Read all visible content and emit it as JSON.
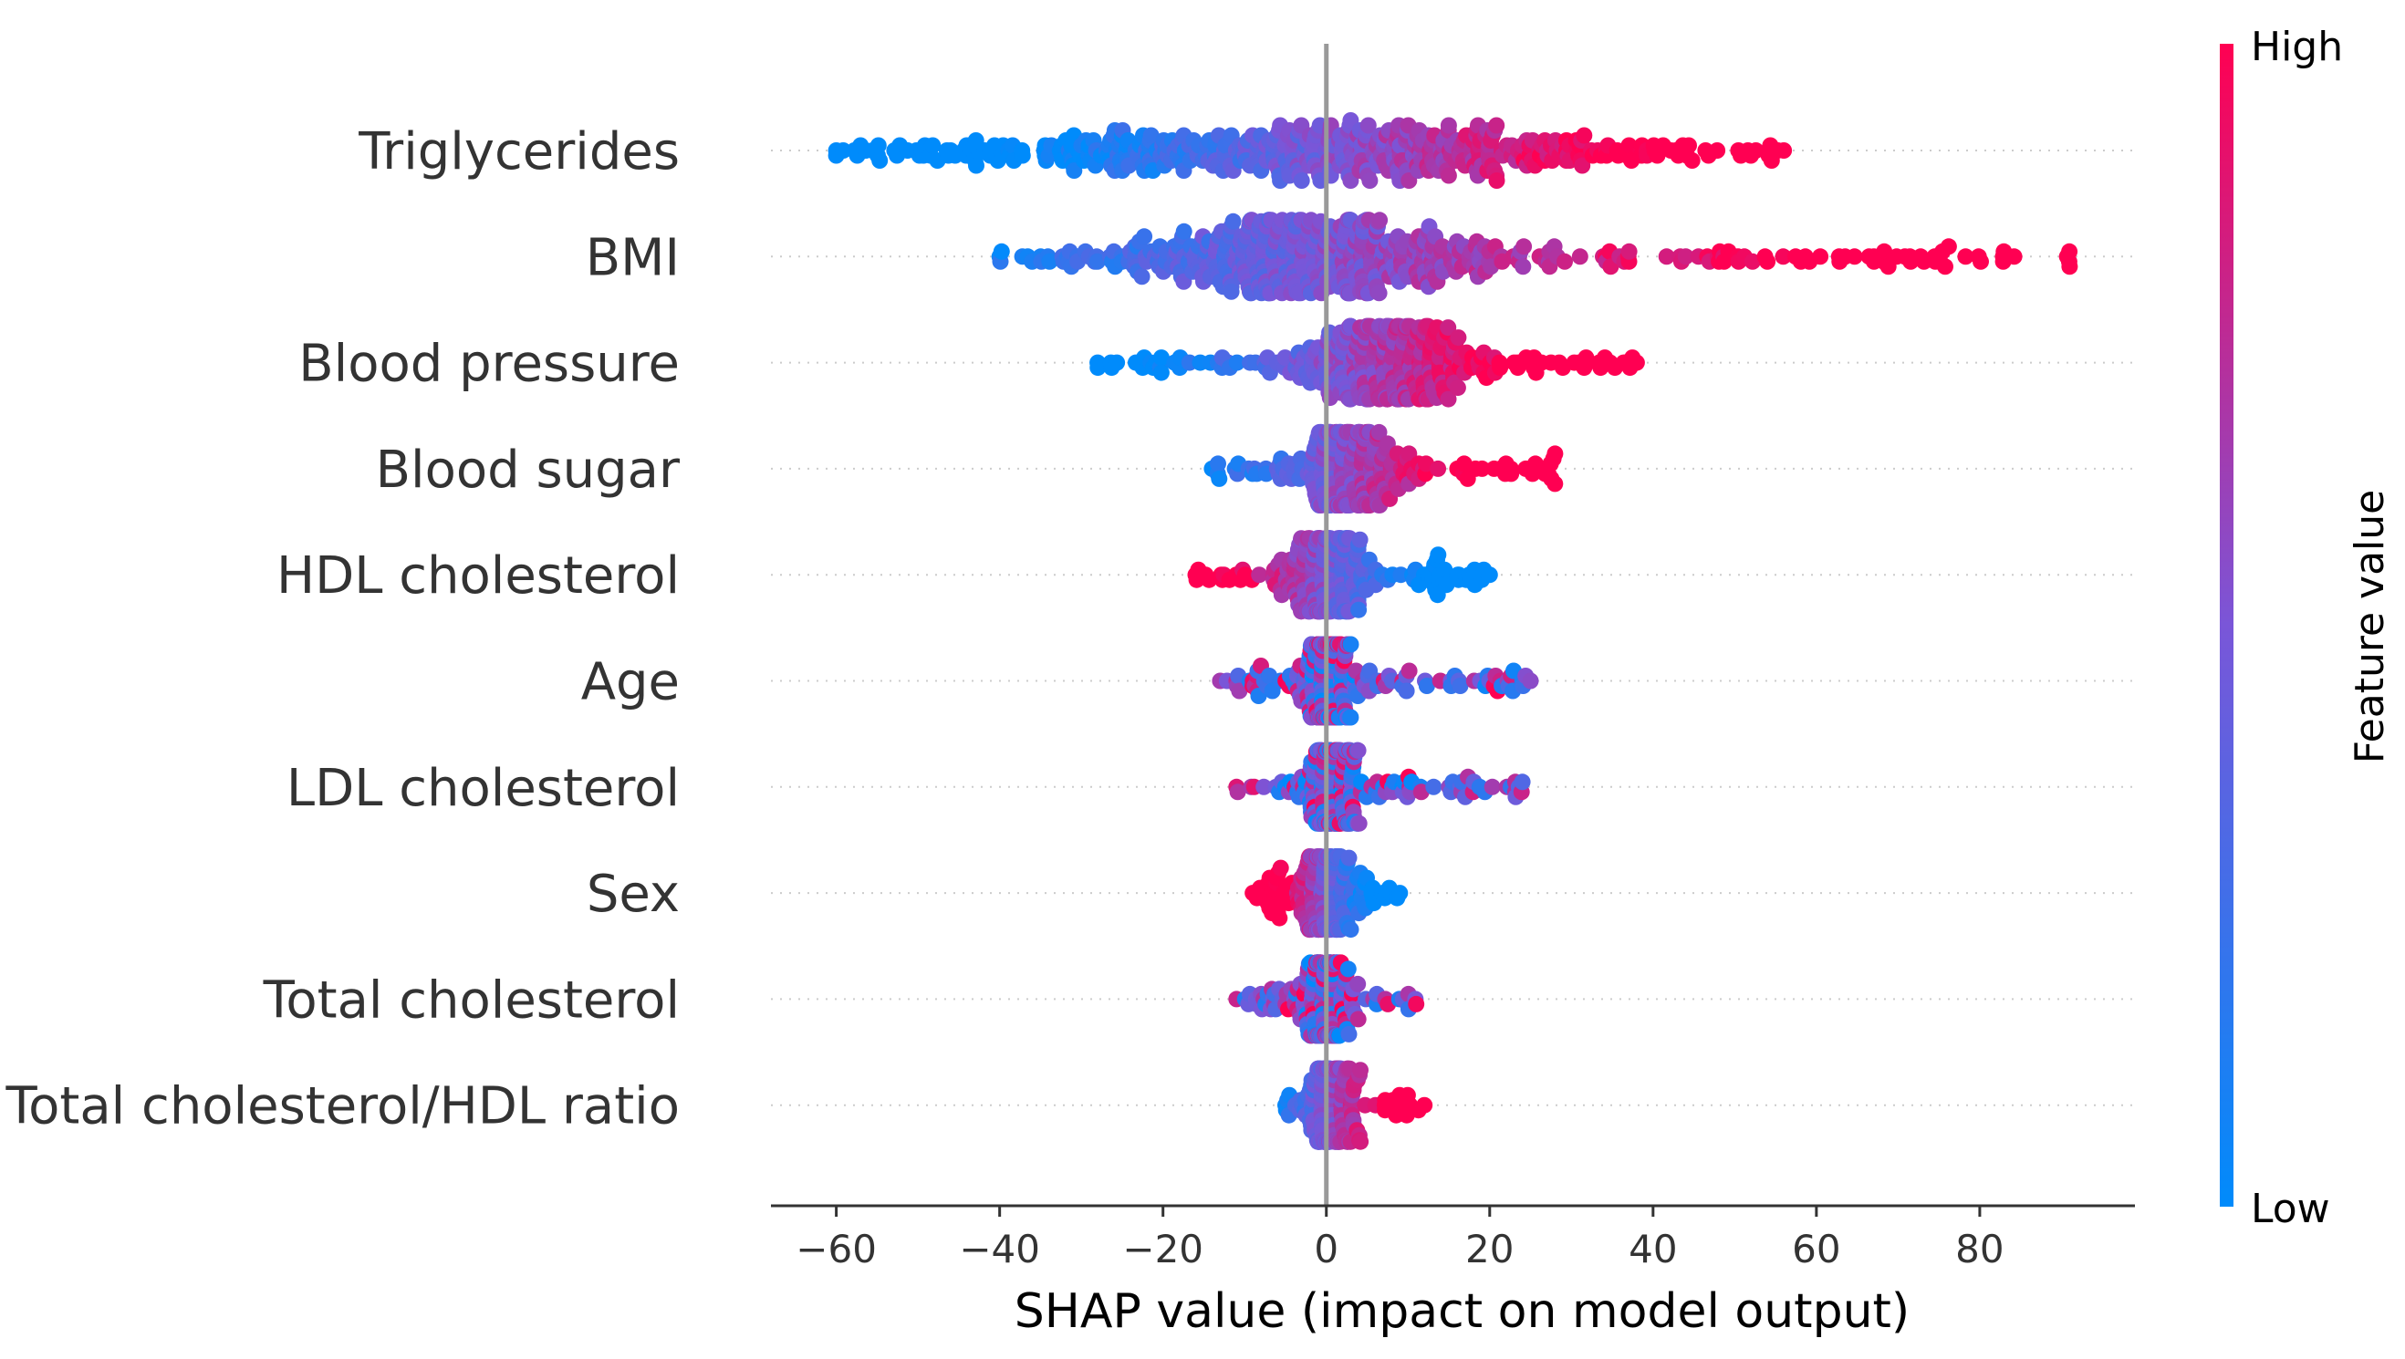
{
  "chart_data": {
    "type": "scatter",
    "subtype": "shap-beeswarm",
    "xlabel": "SHAP value (impact on model output)",
    "xlim": [
      -68,
      99
    ],
    "xticks": [
      -60,
      -40,
      -20,
      0,
      20,
      40,
      60,
      80
    ],
    "xtick_labels": [
      "−60",
      "−40",
      "−20",
      "0",
      "20",
      "40",
      "60",
      "80"
    ],
    "grid": false,
    "colorbar": {
      "label": "Feature value",
      "high_label": "High",
      "low_label": "Low",
      "low_color": "#008bfb",
      "high_color": "#ff0052"
    },
    "features": [
      {
        "name": "Triglycerides",
        "shap_min": -60,
        "shap_max": 56,
        "dense_low": -42,
        "dense_high": 38,
        "direction": "positive"
      },
      {
        "name": "BMI",
        "shap_min": -40,
        "shap_max": 91,
        "dense_low": -23,
        "dense_high": 18,
        "direction": "positive"
      },
      {
        "name": "Blood pressure",
        "shap_min": -28,
        "shap_max": 38,
        "dense_low": -3,
        "dense_high": 18,
        "direction": "positive"
      },
      {
        "name": "Blood sugar",
        "shap_min": -14,
        "shap_max": 28,
        "dense_low": -3,
        "dense_high": 8,
        "direction": "positive"
      },
      {
        "name": "HDL cholesterol",
        "shap_min": -16,
        "shap_max": 20,
        "dense_low": -5,
        "dense_high": 5,
        "direction": "negative"
      },
      {
        "name": "Age",
        "shap_min": -13,
        "shap_max": 25,
        "dense_low": -3,
        "dense_high": 3,
        "direction": "mixed"
      },
      {
        "name": "LDL cholesterol",
        "shap_min": -11,
        "shap_max": 24,
        "dense_low": -2,
        "dense_high": 4,
        "direction": "mixed"
      },
      {
        "name": "Sex",
        "shap_min": -9,
        "shap_max": 9,
        "dense_low": -4,
        "dense_high": 3,
        "direction": "negative"
      },
      {
        "name": "Total cholesterol",
        "shap_min": -11,
        "shap_max": 11,
        "dense_low": -3,
        "dense_high": 3,
        "direction": "mixed"
      },
      {
        "name": "Total cholesterol/HDL ratio",
        "shap_min": -5,
        "shap_max": 12,
        "dense_low": -2,
        "dense_high": 3,
        "direction": "positive"
      }
    ]
  }
}
